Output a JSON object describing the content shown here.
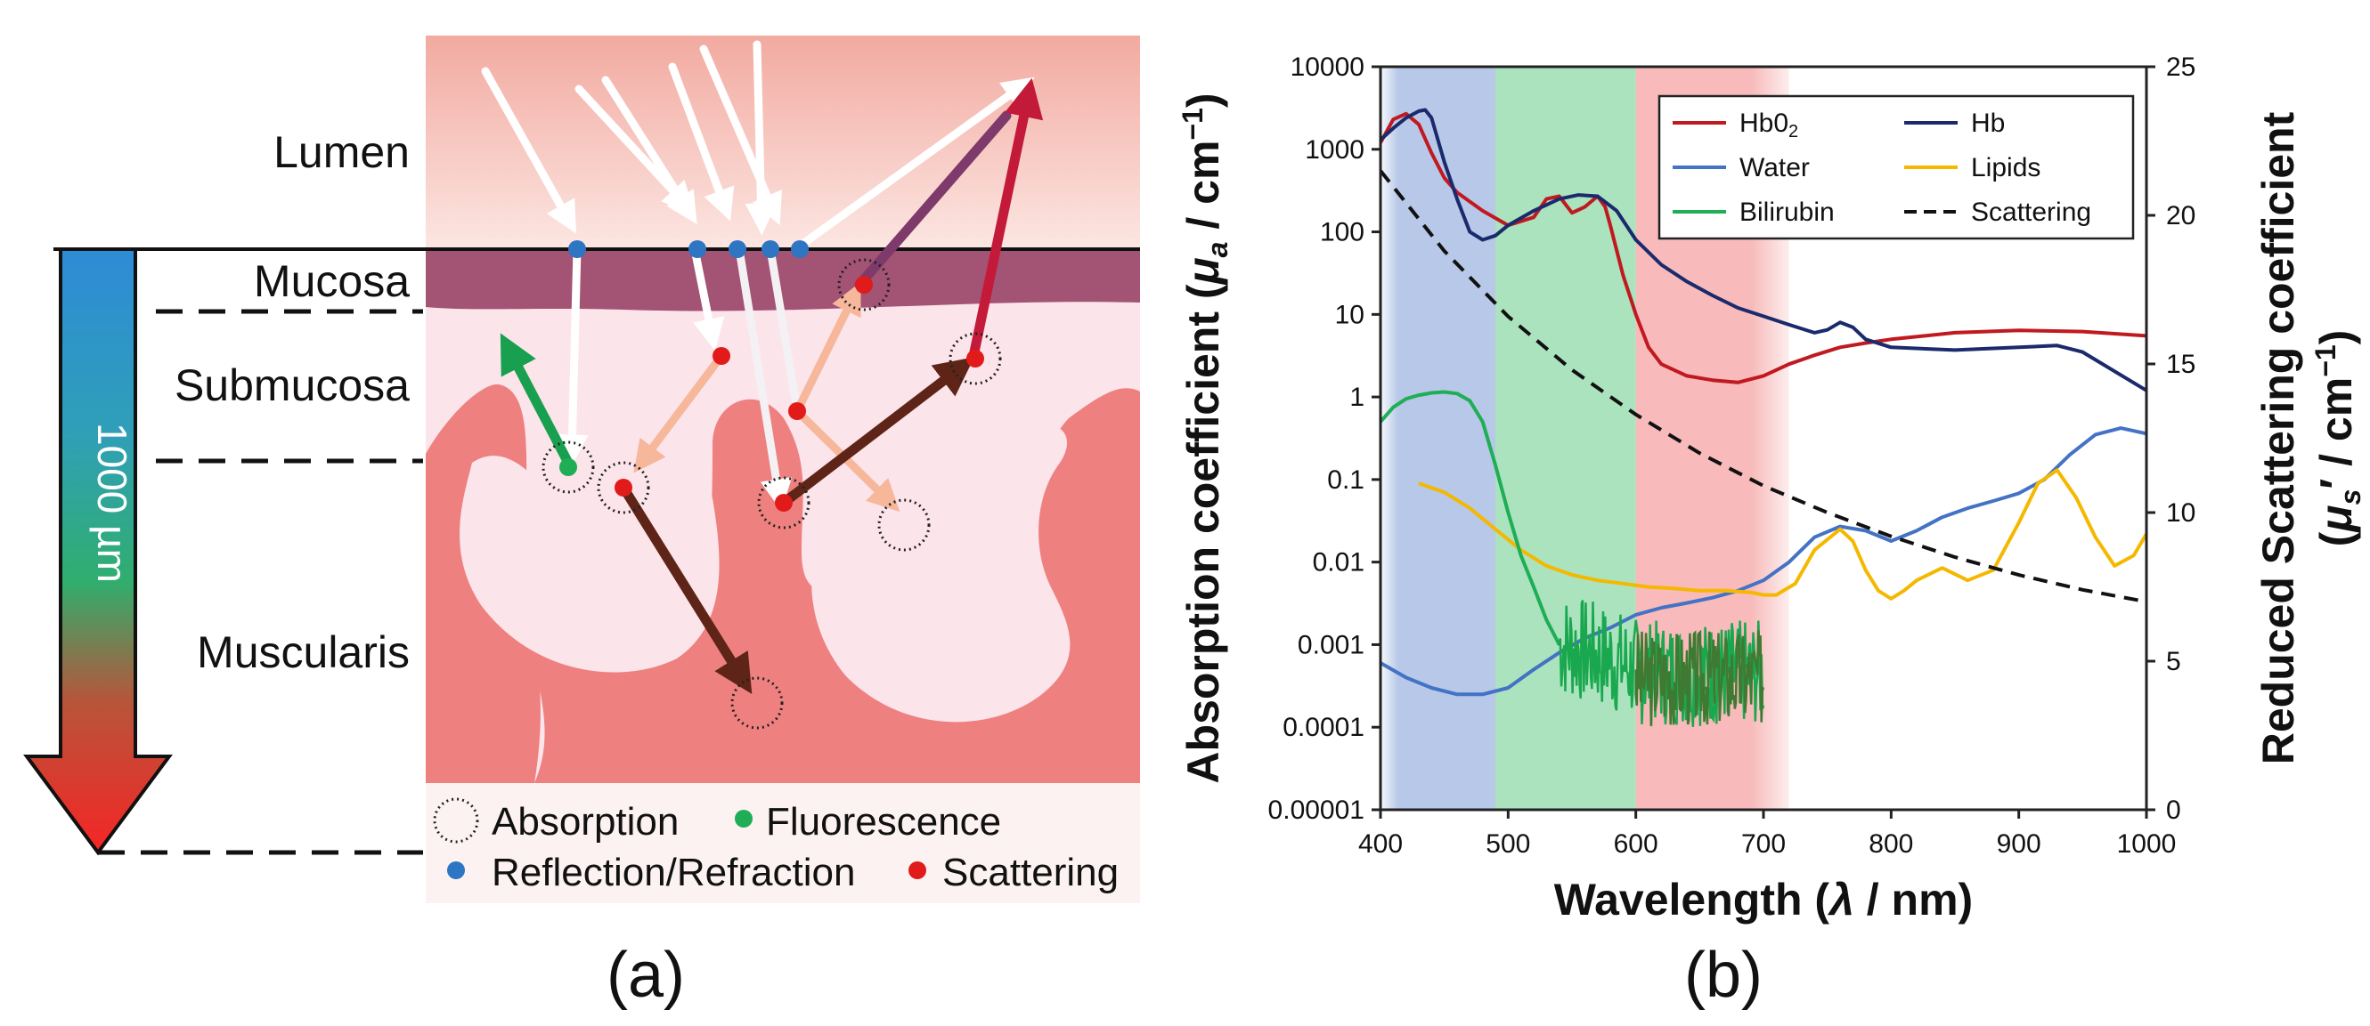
{
  "panel_a": {
    "caption": "(a)",
    "layers": [
      "Lumen",
      "Mucosa",
      "Submucosa",
      "Muscularis"
    ],
    "depth_label": "1000 µm",
    "legend": {
      "absorption": "Absorption",
      "fluorescence": "Fluorescence",
      "reflection": "Reflection/Refraction",
      "scattering": "Scattering"
    },
    "colors": {
      "lumen": "#f3b1a8",
      "mucosa": "#a35374",
      "submucosa": "#fbe6ec",
      "muscularis": "#ee8080",
      "reflection": "#2e75c4",
      "scattering": "#e11a1a",
      "fluorescence": "#1fae55"
    }
  },
  "panel_b": {
    "caption": "(b)",
    "chart_data": {
      "type": "line",
      "xlabel_prefix": "Wavelength (",
      "xlabel_symbol": "λ",
      "xlabel_suffix": " /  nm)",
      "ylabel_left_prefix": "Absorption coefficient (",
      "ylabel_left_symbol": "μ",
      "ylabel_left_sub": "a",
      "ylabel_left_suffix": " /  cm",
      "ylabel_left_sup": "−1",
      "ylabel_left_close": ")",
      "ylabel_right_line1": "Reduced Scattering coefficient",
      "ylabel_right_open": "(",
      "ylabel_right_symbol": "μ",
      "ylabel_right_sub": "s",
      "ylabel_right_mid": "′ /  cm",
      "ylabel_right_sup": "−1",
      "ylabel_right_close": ")",
      "xlim": [
        400,
        1000
      ],
      "ylim_left_log": [
        1e-05,
        10000
      ],
      "ylim_right": [
        0,
        25
      ],
      "x_ticks": [
        "400",
        "500",
        "600",
        "700",
        "800",
        "900",
        "1000"
      ],
      "y_left_ticks": [
        "0.00001",
        "0.0001",
        "0.001",
        "0.01",
        "0.1",
        "1",
        "10",
        "100",
        "1000",
        "10000"
      ],
      "y_right_ticks": [
        "0",
        "5",
        "10",
        "15",
        "20",
        "25"
      ],
      "bands": [
        {
          "name": "blue",
          "from": 400,
          "to": 490,
          "color": "#9fb6e0"
        },
        {
          "name": "green",
          "from": 490,
          "to": 600,
          "color": "#8fd9a8"
        },
        {
          "name": "red",
          "from": 600,
          "to": 720,
          "color": "#f5a3a3"
        }
      ],
      "series": [
        {
          "name": "HbO₂",
          "axis": "left",
          "color": "#c0191f",
          "dashed": false,
          "x": [
            400,
            410,
            420,
            430,
            440,
            450,
            460,
            480,
            500,
            520,
            530,
            540,
            550,
            560,
            570,
            576,
            580,
            590,
            600,
            610,
            620,
            640,
            660,
            680,
            700,
            720,
            740,
            760,
            780,
            800,
            850,
            900,
            950,
            1000
          ],
          "y": [
            1200,
            2300,
            2700,
            2000,
            900,
            450,
            300,
            180,
            120,
            150,
            250,
            270,
            170,
            200,
            270,
            200,
            120,
            30,
            10,
            4,
            2.5,
            1.8,
            1.6,
            1.5,
            1.8,
            2.5,
            3.2,
            4,
            4.5,
            5,
            6,
            6.4,
            6.2,
            5.5
          ]
        },
        {
          "name": "Hb",
          "axis": "left",
          "color": "#1a2a6c",
          "dashed": false,
          "x": [
            400,
            410,
            420,
            430,
            435,
            440,
            450,
            460,
            470,
            480,
            490,
            500,
            520,
            540,
            555,
            570,
            585,
            600,
            620,
            640,
            660,
            680,
            700,
            720,
            740,
            750,
            760,
            770,
            780,
            800,
            850,
            900,
            930,
            950,
            1000
          ],
          "y": [
            1300,
            1800,
            2400,
            2900,
            3000,
            2400,
            700,
            250,
            100,
            80,
            90,
            120,
            180,
            250,
            280,
            270,
            180,
            80,
            40,
            25,
            17,
            12,
            9.5,
            7.5,
            6,
            6.5,
            8,
            7,
            5,
            4,
            3.7,
            4,
            4.2,
            3.5,
            1.2
          ]
        },
        {
          "name": "Water",
          "axis": "left",
          "color": "#4472c4",
          "dashed": false,
          "x": [
            400,
            420,
            440,
            460,
            480,
            500,
            520,
            540,
            560,
            580,
            600,
            620,
            640,
            660,
            680,
            700,
            720,
            740,
            760,
            780,
            800,
            820,
            840,
            860,
            880,
            900,
            920,
            940,
            960,
            980,
            1000
          ],
          "y": [
            0.0006,
            0.0004,
            0.0003,
            0.00025,
            0.00025,
            0.0003,
            0.0005,
            0.0008,
            0.0012,
            0.0016,
            0.0023,
            0.0028,
            0.0032,
            0.0037,
            0.0045,
            0.006,
            0.01,
            0.02,
            0.027,
            0.024,
            0.018,
            0.024,
            0.035,
            0.045,
            0.055,
            0.068,
            0.1,
            0.2,
            0.35,
            0.42,
            0.36
          ]
        },
        {
          "name": "Lipids",
          "axis": "left",
          "color": "#f5b800",
          "dashed": false,
          "x": [
            430,
            450,
            470,
            490,
            510,
            530,
            550,
            570,
            590,
            610,
            630,
            650,
            670,
            690,
            700,
            710,
            725,
            740,
            760,
            770,
            780,
            790,
            800,
            810,
            820,
            840,
            860,
            880,
            900,
            915,
            930,
            945,
            960,
            975,
            990,
            1000
          ],
          "y": [
            0.09,
            0.07,
            0.045,
            0.025,
            0.014,
            0.009,
            0.007,
            0.006,
            0.0055,
            0.005,
            0.0048,
            0.0045,
            0.0045,
            0.0043,
            0.004,
            0.004,
            0.0055,
            0.014,
            0.025,
            0.018,
            0.008,
            0.0045,
            0.0036,
            0.0045,
            0.006,
            0.0085,
            0.006,
            0.008,
            0.03,
            0.09,
            0.13,
            0.06,
            0.02,
            0.009,
            0.012,
            0.022
          ]
        },
        {
          "name": "Bilirubin",
          "axis": "left",
          "color": "#1fae55",
          "dashed": false,
          "x": [
            400,
            410,
            420,
            430,
            440,
            450,
            460,
            470,
            480,
            490,
            500,
            510,
            520,
            530,
            540
          ],
          "y": [
            0.5,
            0.75,
            0.95,
            1.05,
            1.12,
            1.15,
            1.1,
            0.9,
            0.5,
            0.15,
            0.04,
            0.012,
            0.005,
            0.002,
            0.001
          ],
          "noisy_tail_from": 540,
          "noisy_tail_to": 700
        },
        {
          "name": "Scattering",
          "axis": "right",
          "color": "#111111",
          "dashed": true,
          "x": [
            400,
            450,
            500,
            550,
            600,
            650,
            700,
            750,
            800,
            850,
            900,
            950,
            1000
          ],
          "y": [
            21.5,
            18.8,
            16.6,
            14.8,
            13.3,
            12.0,
            10.9,
            10.0,
            9.2,
            8.5,
            7.9,
            7.4,
            7.0
          ]
        }
      ],
      "legend": [
        {
          "label": "Hb0",
          "sub": "2",
          "color": "#c0191f",
          "dashed": false
        },
        {
          "label": "Hb",
          "sub": "",
          "color": "#1a2a6c",
          "dashed": false
        },
        {
          "label": "Water",
          "sub": "",
          "color": "#4472c4",
          "dashed": false
        },
        {
          "label": "Lipids",
          "sub": "",
          "color": "#f5b800",
          "dashed": false
        },
        {
          "label": "Bilirubin",
          "sub": "",
          "color": "#1fae55",
          "dashed": false
        },
        {
          "label": "Scattering",
          "sub": "",
          "color": "#111111",
          "dashed": true
        }
      ],
      "legend_position": "top-right"
    }
  }
}
